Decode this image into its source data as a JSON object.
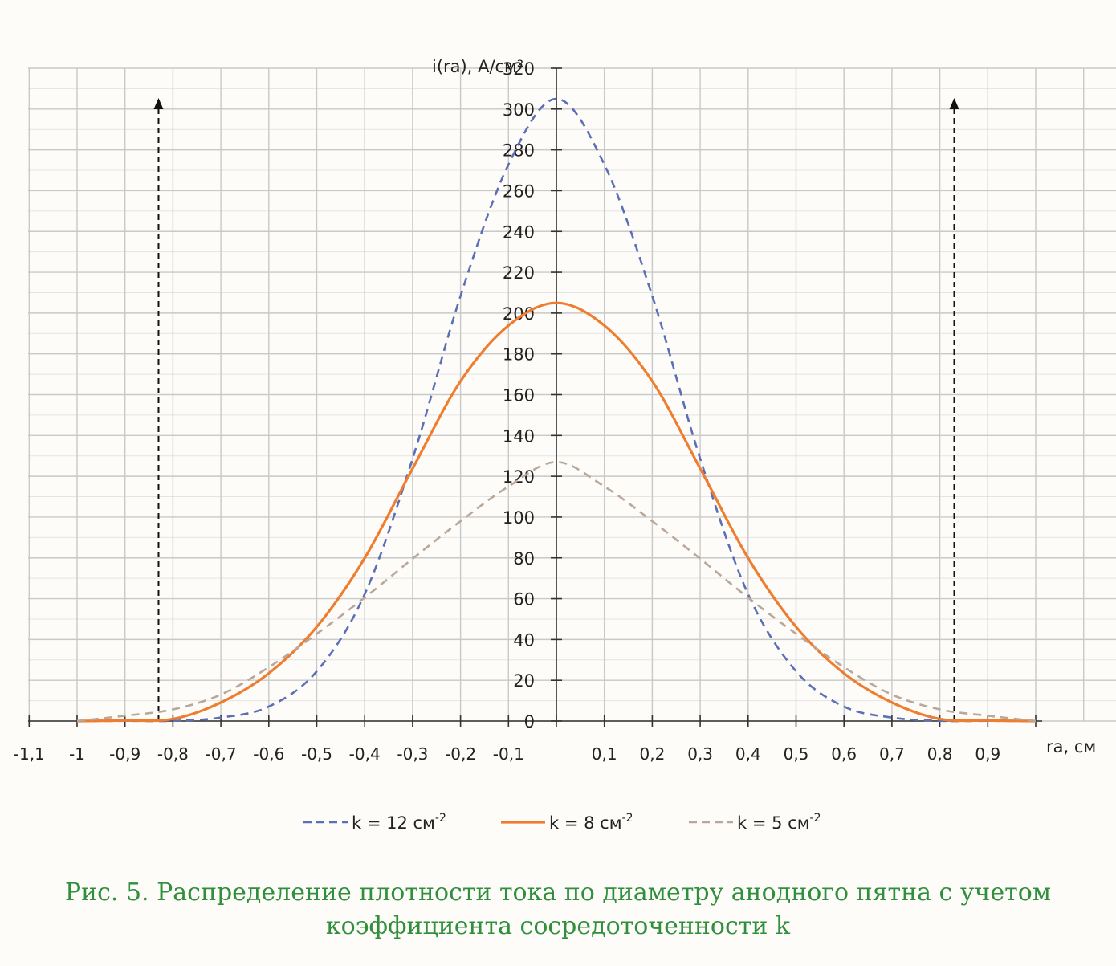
{
  "chart_data": {
    "type": "line",
    "ylabel": "i(ra), А/см²",
    "xlabel": "ra, см",
    "xlim": [
      -1.1,
      1.0
    ],
    "ylim": [
      0,
      320
    ],
    "x_ticks": [
      -1.1,
      -1.0,
      -0.9,
      -0.8,
      -0.7,
      -0.6,
      -0.5,
      -0.4,
      -0.3,
      -0.2,
      -0.1,
      0.1,
      0.2,
      0.3,
      0.4,
      0.5,
      0.6,
      0.7,
      0.8,
      0.9
    ],
    "x_tick_labels": [
      "-1,1",
      "-1",
      "-0,9",
      "-0,8",
      "-0,7",
      "-0,6",
      "-0,5",
      "-0,4",
      "-0,3",
      "-0,2",
      "-0,1",
      "0,1",
      "0,2",
      "0,3",
      "0,4",
      "0,5",
      "0,6",
      "0,7",
      "0,8",
      "0,9"
    ],
    "y_ticks": [
      0,
      20,
      40,
      60,
      80,
      100,
      120,
      140,
      160,
      180,
      200,
      220,
      240,
      260,
      280,
      300,
      320
    ],
    "grid": true,
    "legend_position": "bottom",
    "vertical_markers": [
      -0.83,
      0.83
    ],
    "x": [
      -1.0,
      -0.9,
      -0.8,
      -0.7,
      -0.6,
      -0.5,
      -0.4,
      -0.3,
      -0.2,
      -0.1,
      0.0,
      0.1,
      0.2,
      0.3,
      0.4,
      0.5,
      0.6,
      0.7,
      0.8,
      0.9,
      1.0
    ],
    "series": [
      {
        "name": "k = 12 см⁻²",
        "color": "#5a6fb5",
        "dash": "dashed",
        "values": [
          0.0,
          0.1,
          0.1,
          1.7,
          7.1,
          24.4,
          62.2,
          128.6,
          208.4,
          272.8,
          305.0,
          272.8,
          208.4,
          128.6,
          62.2,
          24.4,
          7.1,
          1.7,
          0.1,
          0.1,
          0.0
        ]
      },
      {
        "name": "k = 8 см⁻²",
        "color": "#ef7d2f",
        "dash": "solid",
        "values": [
          0.0,
          0.3,
          1.0,
          9.1,
          23.4,
          46.2,
          79.9,
          123.8,
          166.6,
          193.9,
          205.0,
          193.9,
          166.6,
          123.8,
          79.9,
          46.2,
          23.4,
          9.1,
          1.0,
          0.3,
          0.0
        ]
      },
      {
        "name": "k = 5 см⁻²",
        "color": "#b8a79a",
        "dash": "dashed",
        "values": [
          0.0,
          2.6,
          5.7,
          13.0,
          26.4,
          42.8,
          60.5,
          79.6,
          98.0,
          115.0,
          127.0,
          115.0,
          98.0,
          79.6,
          60.5,
          42.8,
          26.4,
          13.0,
          5.7,
          2.6,
          0.0
        ]
      }
    ]
  },
  "legend_label_pre": "k = ",
  "legend_items": [
    {
      "value": "12 см",
      "exp": "-2"
    },
    {
      "value": "8 см",
      "exp": "-2"
    },
    {
      "value": "5 см",
      "exp": "-2"
    }
  ],
  "caption": {
    "line1": "Рис. 5. Распределение плотности тока по диаметру анодного пятна с учетом",
    "line2": "коэффициента сосредоточенности k"
  }
}
